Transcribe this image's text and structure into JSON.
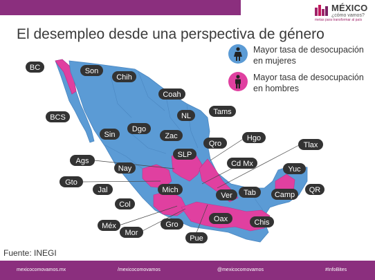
{
  "header": {
    "logo_title": "MÉXICO",
    "logo_subtitle": "¿cómo vamos?",
    "logo_tagline": "metas para transformar al país"
  },
  "title": "El desempleo desde una perspectiva de género",
  "legend": [
    {
      "label_line1": "Mayor tasa de desocupación",
      "label_line2": "en mujeres",
      "color": "#5b9bd5",
      "icon": "woman-icon"
    },
    {
      "label_line1": "Mayor tasa de desocupación",
      "label_line2": "en hombres",
      "color": "#e040a0",
      "icon": "man-icon"
    }
  ],
  "colors": {
    "women_higher": "#5b9bd5",
    "men_higher": "#e040a0",
    "label_bg": "#333333",
    "brand": "#8b2f7e"
  },
  "states": {
    "bc": "BC",
    "son": "Son",
    "chih": "Chih",
    "coah": "Coah",
    "bcs": "BCS",
    "nl": "NL",
    "tams": "Tams",
    "sin": "Sin",
    "dgo": "Dgo",
    "zac": "Zac",
    "hgo": "Hgo",
    "tlax": "Tlax",
    "slp": "SLP",
    "qro": "Qro",
    "ags": "Ags",
    "nay": "Nay",
    "cdmx": "Cd Mx",
    "yuc": "Yuc",
    "gto": "Gto",
    "jal": "Jal",
    "mich": "Mich",
    "ver": "Ver",
    "tab": "Tab",
    "camp": "Camp",
    "qr": "QR",
    "col": "Col",
    "oax": "Oax",
    "mex": "Méx",
    "gro": "Gro",
    "chis": "Chis",
    "mor": "Mor",
    "pue": "Pue"
  },
  "source": "Fuente: INEGI",
  "footer": {
    "website": "mexicocomovamos.mx",
    "facebook": "/mexicocomovamos",
    "twitter": "@mexicocomovamos",
    "hashtag": "#InfoBites"
  }
}
